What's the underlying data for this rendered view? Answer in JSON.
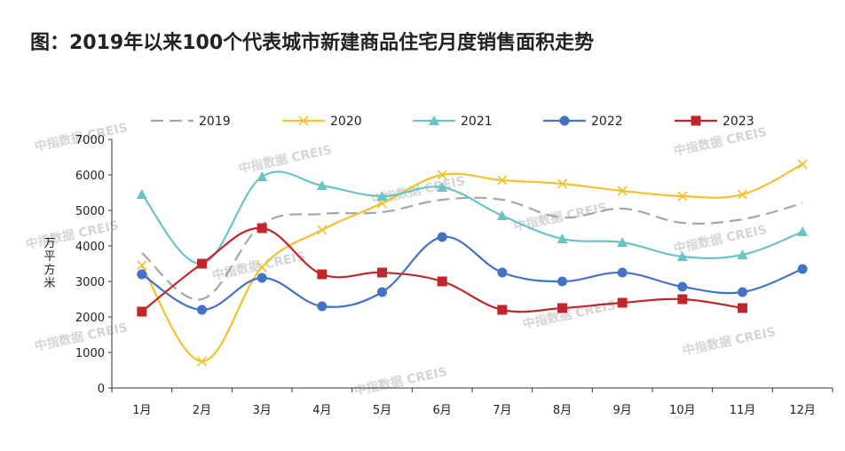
{
  "title": "图：2019年以来100个代表城市新建商品住宅月度销售面积走势",
  "watermark": "中指数据 CREIS",
  "chart_data": {
    "type": "line",
    "title": "图：2019年以来100个代表城市新建商品住宅月度销售面积走势",
    "ylabel": "万平方米",
    "ylabel_lines": [
      "万平",
      "方米"
    ],
    "ylim": [
      0,
      7000
    ],
    "yticks": [
      0,
      1000,
      2000,
      3000,
      4000,
      5000,
      6000,
      7000
    ],
    "grid": false,
    "legend": "top",
    "categories": [
      "1月",
      "2月",
      "3月",
      "4月",
      "5月",
      "6月",
      "7月",
      "8月",
      "9月",
      "10月",
      "11月",
      "12月"
    ],
    "series": [
      {
        "name": "2019",
        "color": "#a6a6a6",
        "marker": "none",
        "dash": true,
        "values": [
          3800,
          2500,
          4600,
          4900,
          4950,
          5300,
          5300,
          4800,
          5050,
          4650,
          4750,
          5200
        ]
      },
      {
        "name": "2020",
        "color": "#f2c12e",
        "marker": "x",
        "values": [
          3450,
          750,
          3400,
          4450,
          5200,
          6000,
          5850,
          5750,
          5550,
          5400,
          5450,
          6300
        ]
      },
      {
        "name": "2021",
        "color": "#6bc4c4",
        "marker": "triangle",
        "values": [
          5450,
          3500,
          5950,
          5700,
          5400,
          5650,
          4850,
          4200,
          4100,
          3700,
          3750,
          4400
        ]
      },
      {
        "name": "2022",
        "color": "#4472c4",
        "marker": "circle",
        "values": [
          3200,
          2200,
          3100,
          2300,
          2700,
          4250,
          3250,
          3000,
          3250,
          2850,
          2700,
          3350
        ]
      },
      {
        "name": "2023",
        "color": "#c0272d",
        "marker": "square",
        "values": [
          2150,
          3500,
          4500,
          3200,
          3250,
          3000,
          2200,
          2250,
          2400,
          2500,
          2250,
          null
        ]
      }
    ]
  }
}
